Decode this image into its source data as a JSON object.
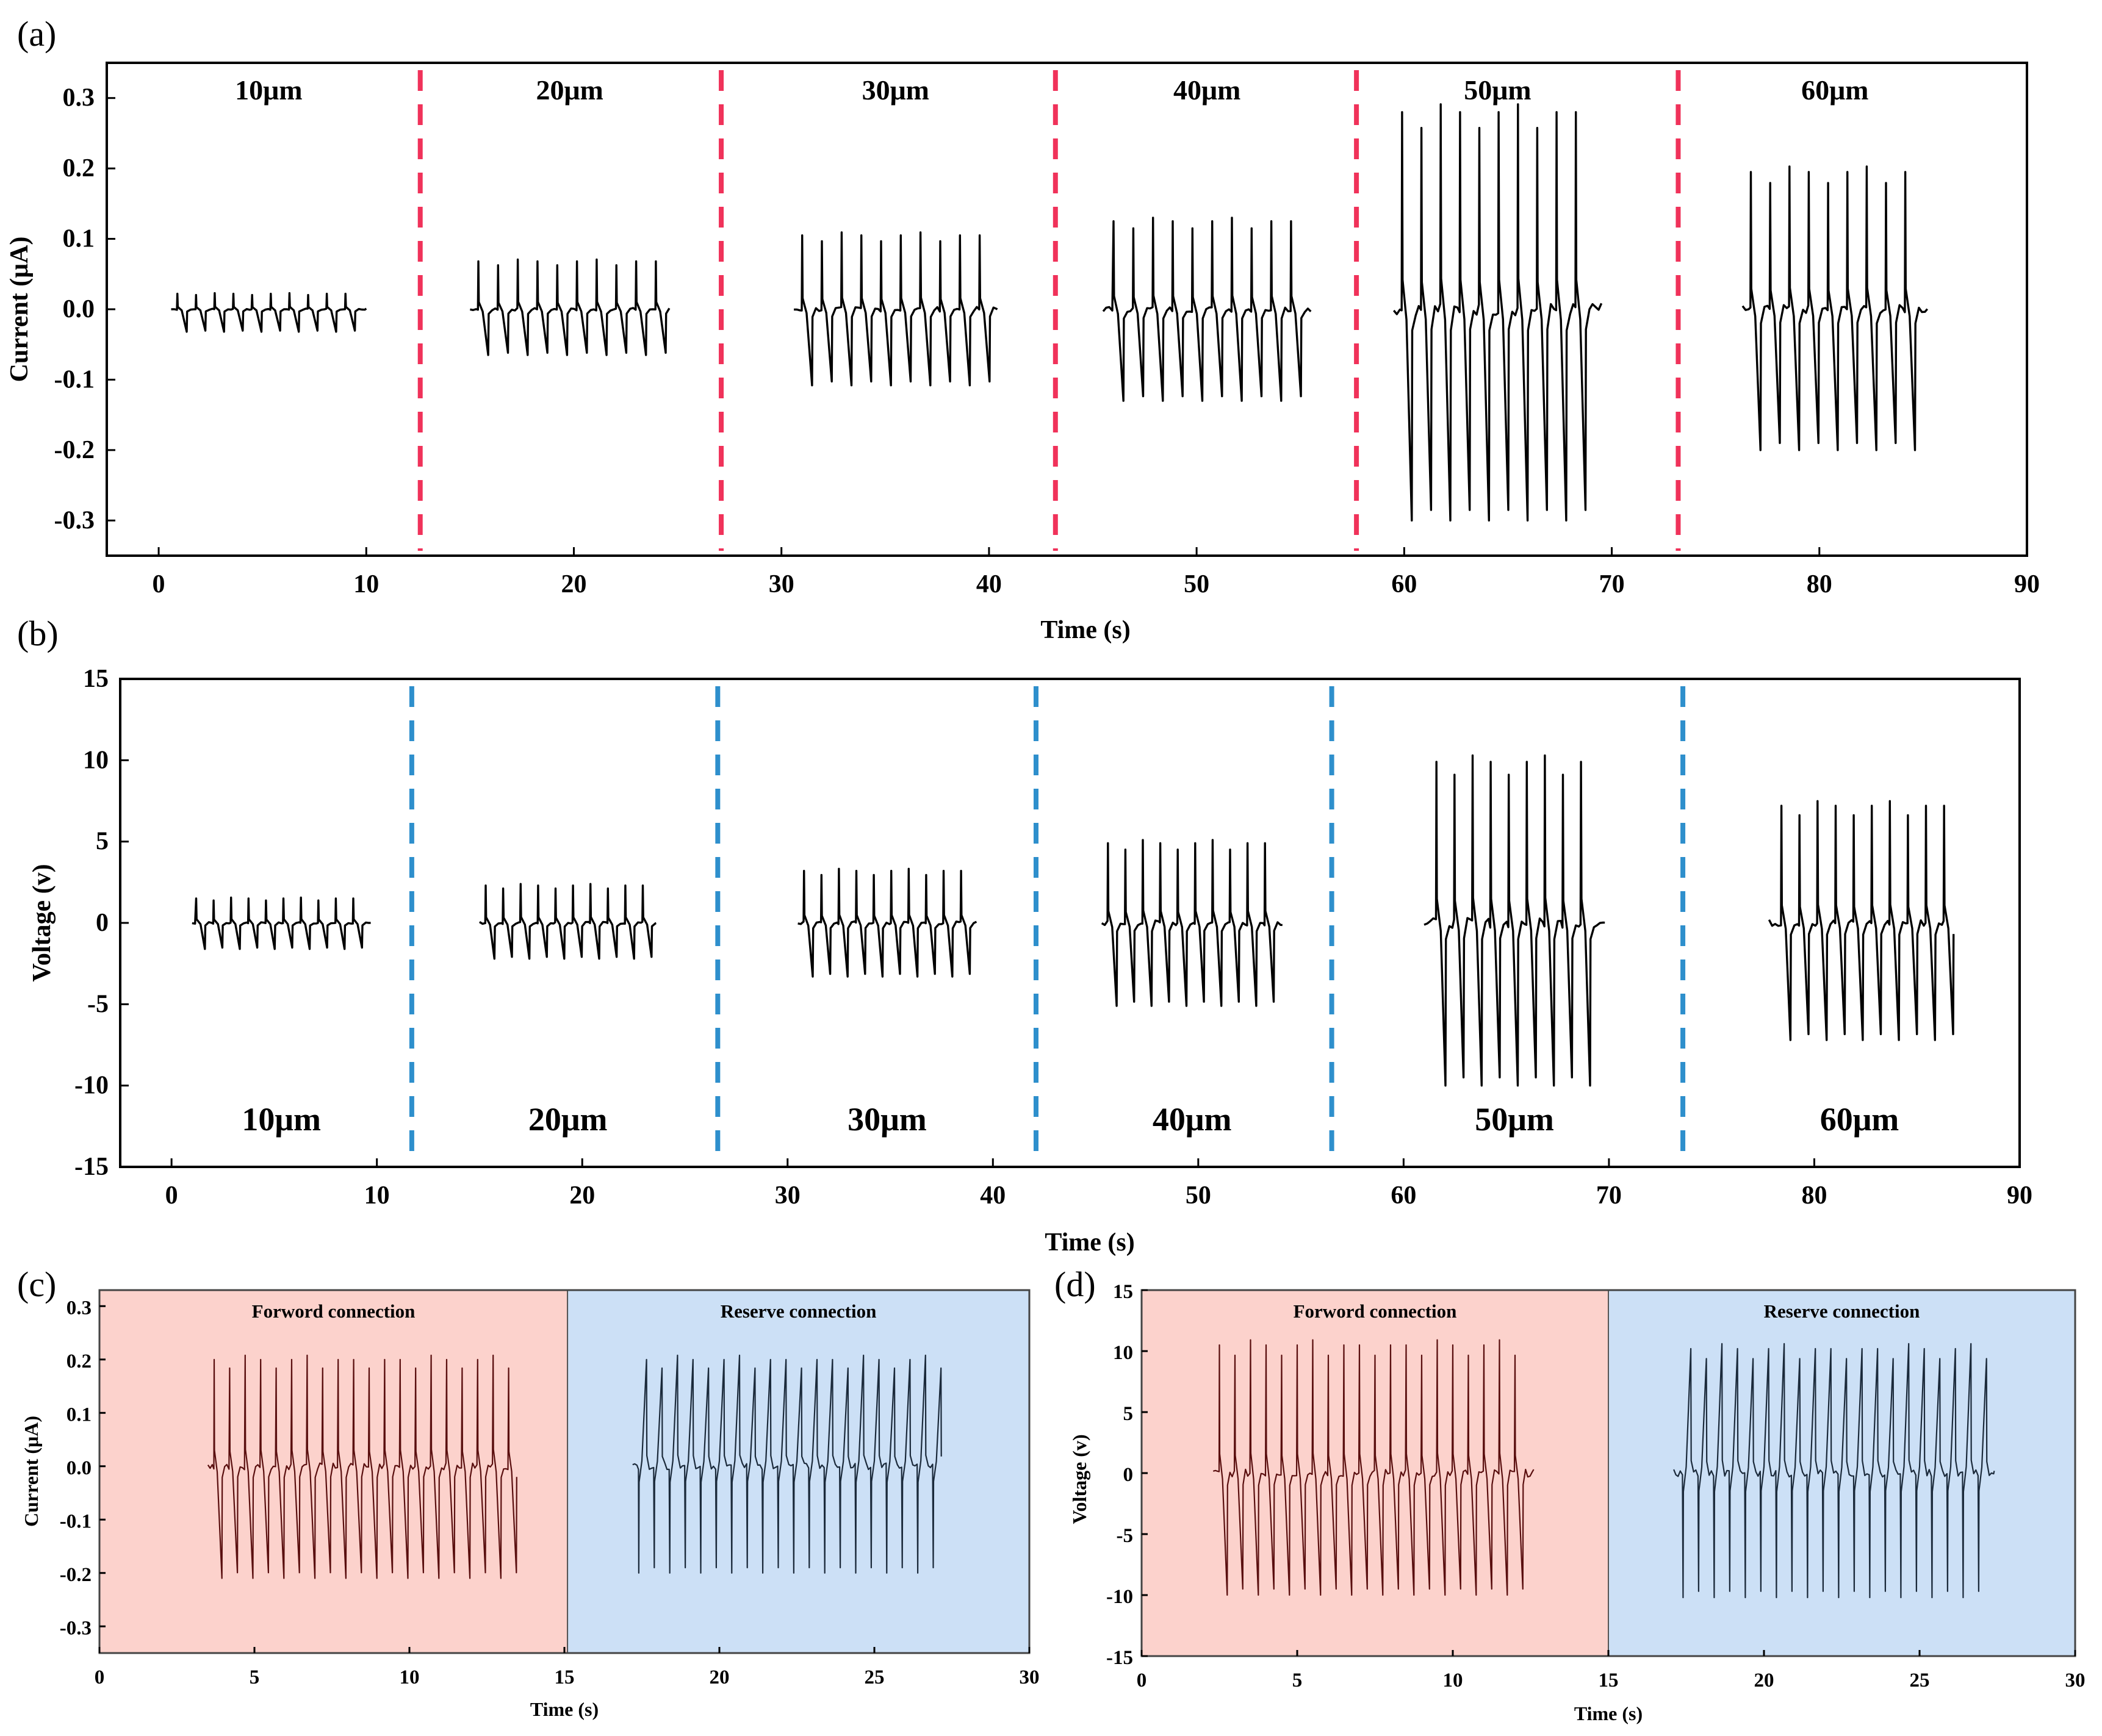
{
  "chart_data": [
    {
      "id": "a",
      "panel_label": "(a)",
      "type": "line",
      "xlabel": "Time (s)",
      "ylabel": "Current (μA)",
      "xlim": [
        -2.5,
        90
      ],
      "ylim": [
        -0.35,
        0.35
      ],
      "xticks": [
        "0",
        "10",
        "20",
        "30",
        "40",
        "50",
        "60",
        "70",
        "80",
        "90"
      ],
      "yticks": [
        "0.3",
        "0.2",
        "0.1",
        "0.0",
        "-0.1",
        "-0.2",
        "-0.3"
      ],
      "divider_color": "#f0325a",
      "dividers_x": [
        12.6,
        27.1,
        43.2,
        57.7,
        73.2
      ],
      "label_position": "top",
      "segments": [
        {
          "label": "10μm",
          "x_start": 0.6,
          "x_end": 10.0,
          "first_peak": 0.9,
          "peak_spacing": 0.9,
          "n_peaks": 10,
          "pos_peak": 0.022,
          "neg_peak": -0.032
        },
        {
          "label": "20μm",
          "x_start": 15.0,
          "x_end": 24.6,
          "first_peak": 15.4,
          "peak_spacing": 0.95,
          "n_peaks": 10,
          "pos_peak": 0.068,
          "neg_peak": -0.065
        },
        {
          "label": "30μm",
          "x_start": 30.6,
          "x_end": 40.4,
          "first_peak": 31.0,
          "peak_spacing": 0.95,
          "n_peaks": 10,
          "pos_peak": 0.105,
          "neg_peak": -0.108
        },
        {
          "label": "40μm",
          "x_start": 45.5,
          "x_end": 55.5,
          "first_peak": 46.0,
          "peak_spacing": 0.95,
          "n_peaks": 10,
          "pos_peak": 0.125,
          "neg_peak": -0.13
        },
        {
          "label": "50μm",
          "x_start": 59.5,
          "x_end": 69.5,
          "first_peak": 59.9,
          "peak_spacing": 0.93,
          "n_peaks": 10,
          "pos_peak": 0.28,
          "neg_peak": -0.3
        },
        {
          "label": "60μm",
          "x_start": 76.3,
          "x_end": 85.2,
          "first_peak": 76.7,
          "peak_spacing": 0.93,
          "n_peaks": 9,
          "pos_peak": 0.195,
          "neg_peak": -0.2
        }
      ]
    },
    {
      "id": "b",
      "panel_label": "(b)",
      "type": "line",
      "xlabel": "Time (s)",
      "ylabel": "Voltage (v)",
      "xlim": [
        -2.5,
        90
      ],
      "ylim": [
        -15,
        15
      ],
      "xticks": [
        "0",
        "10",
        "20",
        "30",
        "40",
        "50",
        "60",
        "70",
        "80",
        "90"
      ],
      "yticks": [
        "15",
        "10",
        "5",
        "0",
        "-5",
        "-10",
        "-15"
      ],
      "divider_color": "#2e8fcc",
      "dividers_x": [
        11.7,
        26.6,
        42.1,
        56.5,
        73.6
      ],
      "label_position": "bottom",
      "segments": [
        {
          "label": "10μm",
          "x_start": 1.0,
          "x_end": 9.7,
          "first_peak": 1.2,
          "peak_spacing": 0.85,
          "n_peaks": 10,
          "pos_peak": 1.5,
          "neg_peak": -1.6
        },
        {
          "label": "20μm",
          "x_start": 15.0,
          "x_end": 23.6,
          "first_peak": 15.3,
          "peak_spacing": 0.85,
          "n_peaks": 10,
          "pos_peak": 2.3,
          "neg_peak": -2.2
        },
        {
          "label": "30μm",
          "x_start": 30.5,
          "x_end": 39.2,
          "first_peak": 30.8,
          "peak_spacing": 0.85,
          "n_peaks": 10,
          "pos_peak": 3.2,
          "neg_peak": -3.3
        },
        {
          "label": "40μm",
          "x_start": 45.3,
          "x_end": 54.1,
          "first_peak": 45.6,
          "peak_spacing": 0.85,
          "n_peaks": 10,
          "pos_peak": 4.9,
          "neg_peak": -5.1
        },
        {
          "label": "50μm",
          "x_start": 61.0,
          "x_end": 69.8,
          "first_peak": 61.6,
          "peak_spacing": 0.88,
          "n_peaks": 9,
          "pos_peak": 9.9,
          "neg_peak": -10.0
        },
        {
          "label": "60μm",
          "x_start": 77.8,
          "x_end": 86.6,
          "first_peak": 78.4,
          "peak_spacing": 0.88,
          "n_peaks": 10,
          "pos_peak": 7.2,
          "neg_peak": -7.2
        }
      ]
    },
    {
      "id": "c",
      "panel_label": "(c)",
      "type": "line",
      "xlabel": "Time (s)",
      "ylabel": "Current (μA)",
      "xlim": [
        0,
        30
      ],
      "ylim": [
        -0.35,
        0.33
      ],
      "xticks": [
        "0",
        "5",
        "10",
        "15",
        "20",
        "25",
        "30"
      ],
      "yticks": [
        "0.3",
        "0.2",
        "0.1",
        "0.0",
        "-0.1",
        "-0.2",
        "-0.3"
      ],
      "regions": [
        {
          "label": "Forword connection",
          "x_from": 0,
          "x_to": 15.1,
          "color": "#fcd2cc"
        },
        {
          "label": "Reserve connection",
          "x_from": 15.1,
          "x_to": 30,
          "color": "#cce0f6"
        }
      ],
      "series": [
        {
          "name": "Forword connection",
          "color": "#5a0f0f",
          "x_start": 3.5,
          "x_end": 13.3,
          "first_peak": 3.7,
          "peak_spacing": 0.5,
          "n_peaks": 20,
          "pos_peak": 0.2,
          "neg_peak": -0.21,
          "polarity": 1
        },
        {
          "name": "Reserve connection",
          "color": "#1b2a3b",
          "x_start": 17.2,
          "x_end": 27.0,
          "first_peak": 17.4,
          "peak_spacing": 0.5,
          "n_peaks": 20,
          "pos_peak": 0.2,
          "neg_peak": -0.2,
          "polarity": -1
        }
      ]
    },
    {
      "id": "d",
      "panel_label": "(d)",
      "type": "line",
      "xlabel": "Time (s)",
      "ylabel": "Voltage (v)",
      "xlim": [
        0,
        30
      ],
      "ylim": [
        -15,
        15
      ],
      "xticks": [
        "0",
        "5",
        "10",
        "15",
        "20",
        "25",
        "30"
      ],
      "yticks": [
        "15",
        "10",
        "5",
        "0",
        "-5",
        "-10",
        "-15"
      ],
      "regions": [
        {
          "label": "Forword connection",
          "x_from": 0,
          "x_to": 15.0,
          "color": "#fcd2cc"
        },
        {
          "label": "Reserve connection",
          "x_from": 15.0,
          "x_to": 30,
          "color": "#cce0f6"
        }
      ],
      "series": [
        {
          "name": "Forword connection",
          "color": "#5a0f0f",
          "x_start": 2.3,
          "x_end": 12.6,
          "first_peak": 2.5,
          "peak_spacing": 0.5,
          "n_peaks": 20,
          "pos_peak": 10.5,
          "neg_peak": -10.0,
          "polarity": 1
        },
        {
          "name": "Reserve connection",
          "color": "#1b2a3b",
          "x_start": 17.1,
          "x_end": 27.4,
          "first_peak": 17.4,
          "peak_spacing": 0.5,
          "n_peaks": 20,
          "pos_peak": 10.2,
          "neg_peak": -10.2,
          "polarity": -1
        }
      ]
    }
  ]
}
